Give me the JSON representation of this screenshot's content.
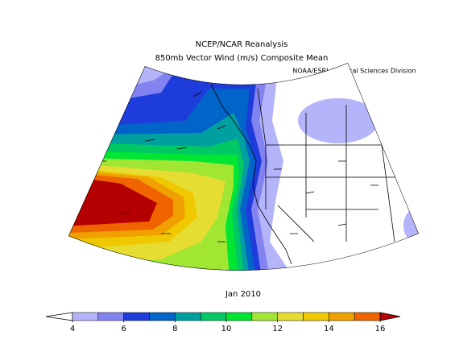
{
  "title": [
    "NCEP/NCAR Reanalysis",
    "850mb Vector Wind (m/s) Composite Mean"
  ],
  "credit": "NOAA/ESRL Physical Sciences Division",
  "period": "Jan 2010",
  "colorbar": {
    "range": [
      4,
      16
    ],
    "ticks": [
      4,
      6,
      8,
      10,
      12,
      14,
      16
    ],
    "colors": [
      "#ffffff",
      "#b4b4fa",
      "#8282f0",
      "#1e3cdc",
      "#0064c8",
      "#00a0a0",
      "#00c864",
      "#00e632",
      "#a0e632",
      "#e6dc32",
      "#f0c800",
      "#f0a000",
      "#f06400",
      "#b40000"
    ]
  }
}
